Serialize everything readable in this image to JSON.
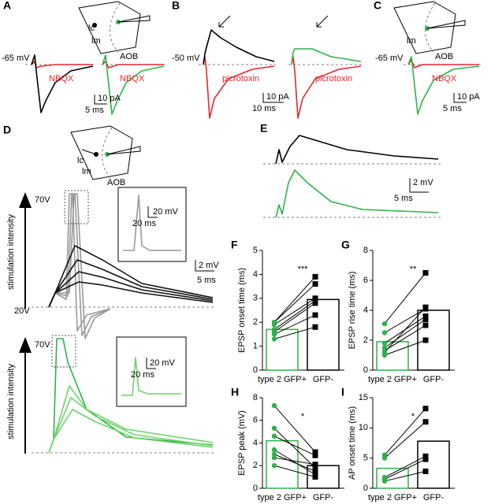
{
  "panels": {
    "A": {
      "letter": "A",
      "vm": "-65 mV",
      "drug1": "NBQX",
      "drug2": "NBQX",
      "t": "5 ms",
      "a": "10 pA",
      "lc": "lc",
      "lm": "lm",
      "aob": "AOB"
    },
    "B": {
      "letter": "B",
      "vm": "-50 mV",
      "drug1": "picrotoxin",
      "drug2": "picrotoxin",
      "t": "10 ms",
      "a": "10 pA"
    },
    "C": {
      "letter": "C",
      "vm": "-65 mV",
      "drug": "NBQX",
      "t": "5 ms",
      "a": "10 pA",
      "lm": "lm",
      "aob": "AOB"
    },
    "D": {
      "letter": "D",
      "lc": "lc",
      "lm": "lm",
      "aob": "AOB",
      "v_high1": "70V",
      "v_low1": "20V",
      "v_high2": "70V",
      "axis1": "stimulation intensity",
      "axis2": "stimulation intensity",
      "a": "2 mV",
      "t": "5 ms",
      "inset1_a": "20 mV",
      "inset1_t": "20 ms",
      "inset2_a": "20 mV",
      "inset2_t": "20 ms"
    },
    "E": {
      "letter": "E",
      "a": "2 mV",
      "t": "5 ms"
    }
  },
  "chart_data": [
    {
      "type": "bar",
      "letter": "F",
      "ylabel": "EPSP onset time (ms)",
      "categories": [
        "type 2 GFP+",
        "GFP-"
      ],
      "values": [
        1.7,
        2.95
      ],
      "bar_edge_colors": [
        "#2db34a",
        "#000000"
      ],
      "ylim": [
        0,
        5
      ],
      "yticks": [
        0,
        1,
        2,
        3,
        4,
        5
      ],
      "significance": "***",
      "pairs": [
        [
          2.0,
          3.9
        ],
        [
          2.0,
          3.6
        ],
        [
          1.9,
          3.0
        ],
        [
          1.7,
          2.9
        ],
        [
          1.6,
          2.8
        ],
        [
          1.5,
          2.3
        ],
        [
          1.3,
          1.8
        ]
      ]
    },
    {
      "type": "bar",
      "letter": "G",
      "ylabel": "EPSP rise time (ms)",
      "categories": [
        "type 2 GFP+",
        "GFP-"
      ],
      "values": [
        1.9,
        4.0
      ],
      "bar_edge_colors": [
        "#2db34a",
        "#000000"
      ],
      "ylim": [
        0,
        8
      ],
      "yticks": [
        0,
        2,
        4,
        6,
        8
      ],
      "significance": "**",
      "pairs": [
        [
          3.1,
          6.5
        ],
        [
          2.5,
          4.1
        ],
        [
          1.8,
          3.6
        ],
        [
          1.5,
          3.4
        ],
        [
          1.3,
          3.0
        ],
        [
          1.2,
          4.2
        ],
        [
          1.0,
          2.0
        ]
      ]
    },
    {
      "type": "bar",
      "letter": "H",
      "ylabel": "EPSP peak (mV)",
      "categories": [
        "type 2 GFP+",
        "GFP-"
      ],
      "values": [
        4.2,
        2.0
      ],
      "bar_edge_colors": [
        "#2db34a",
        "#000000"
      ],
      "ylim": [
        0,
        8
      ],
      "yticks": [
        0,
        2,
        4,
        6,
        8
      ],
      "significance": "*",
      "pairs": [
        [
          7.3,
          3.2
        ],
        [
          5.3,
          1.8
        ],
        [
          4.6,
          2.9
        ],
        [
          3.4,
          1.2
        ],
        [
          3.0,
          1.5
        ],
        [
          2.7,
          2.1
        ],
        [
          2.0,
          1.0
        ]
      ]
    },
    {
      "type": "bar",
      "letter": "I",
      "ylabel": "AP onset time (ms)",
      "categories": [
        "type 2 GFP+",
        "GFP-"
      ],
      "values": [
        3.3,
        7.8
      ],
      "bar_edge_colors": [
        "#2db34a",
        "#000000"
      ],
      "ylim": [
        0,
        15
      ],
      "yticks": [
        0,
        5,
        10,
        15
      ],
      "significance": "*",
      "pairs": [
        [
          5.5,
          13.2
        ],
        [
          5.0,
          11.0
        ],
        [
          1.8,
          5.3
        ],
        [
          1.5,
          4.8
        ],
        [
          1.2,
          2.8
        ]
      ]
    }
  ]
}
